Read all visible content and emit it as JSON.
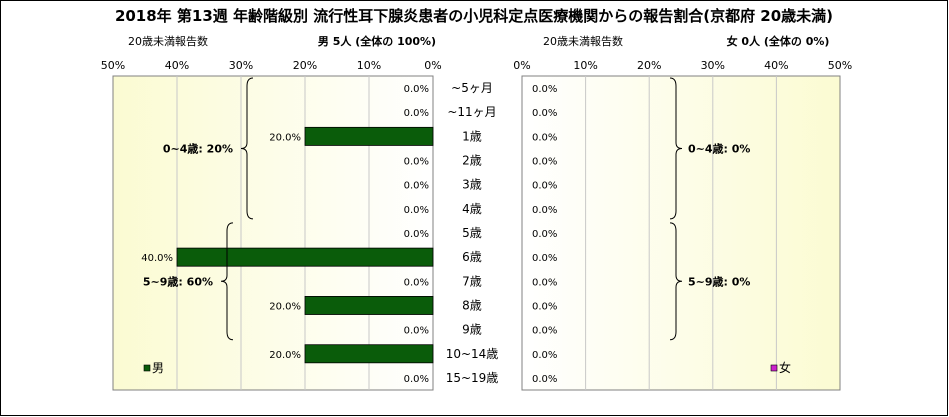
{
  "title": "2018年 第13週 年齢階級別 流行性耳下腺炎患者の小児科定点医療機関からの報告割合(京都府 20歳未満)",
  "chart_data": [
    {
      "type": "bar",
      "orientation": "horizontal",
      "direction": "right-to-left",
      "side": "left",
      "caption_left": "20歳未満報告数",
      "caption_main": "男  5人  (全体の  100%)",
      "xlim": [
        0,
        50
      ],
      "ticks": [
        "50%",
        "40%",
        "30%",
        "20%",
        "10%",
        "0%"
      ],
      "categories": [
        "~5ヶ月",
        "~11ヶ月",
        "1歳",
        "2歳",
        "3歳",
        "4歳",
        "5歳",
        "6歳",
        "7歳",
        "8歳",
        "9歳",
        "10~14歳",
        "15~19歳"
      ],
      "series": [
        {
          "name": "男",
          "color": "#0a5c0a",
          "values": [
            0,
            0,
            20,
            0,
            0,
            0,
            0,
            40,
            0,
            20,
            0,
            20,
            0
          ],
          "labels": [
            "0.0%",
            "0.0%",
            "20.0%",
            "0.0%",
            "0.0%",
            "0.0%",
            "0.0%",
            "40.0%",
            "0.0%",
            "20.0%",
            "0.0%",
            "20.0%",
            "0.0%"
          ]
        }
      ],
      "groups": [
        {
          "label": "0~4歳: 20%",
          "from": 0,
          "to": 5
        },
        {
          "label": "5~9歳: 60%",
          "from": 6,
          "to": 10
        }
      ],
      "legend": {
        "label": "男",
        "color": "#0a5c0a",
        "placement": "bottom-left"
      },
      "grid": true
    },
    {
      "type": "bar",
      "orientation": "horizontal",
      "direction": "left-to-right",
      "side": "right",
      "caption_left": "20歳未満報告数",
      "caption_main": "女  0人  (全体の  0%)",
      "xlim": [
        0,
        50
      ],
      "ticks": [
        "0%",
        "10%",
        "20%",
        "30%",
        "40%",
        "50%"
      ],
      "categories": [
        "~5ヶ月",
        "~11ヶ月",
        "1歳",
        "2歳",
        "3歳",
        "4歳",
        "5歳",
        "6歳",
        "7歳",
        "8歳",
        "9歳",
        "10~14歳",
        "15~19歳"
      ],
      "series": [
        {
          "name": "女",
          "color": "#cc22cc",
          "values": [
            0,
            0,
            0,
            0,
            0,
            0,
            0,
            0,
            0,
            0,
            0,
            0,
            0
          ],
          "labels": [
            "0.0%",
            "0.0%",
            "0.0%",
            "0.0%",
            "0.0%",
            "0.0%",
            "0.0%",
            "0.0%",
            "0.0%",
            "0.0%",
            "0.0%",
            "0.0%",
            "0.0%"
          ]
        }
      ],
      "groups": [
        {
          "label": "0~4歳: 0%",
          "from": 0,
          "to": 5
        },
        {
          "label": "5~9歳: 0%",
          "from": 6,
          "to": 10
        }
      ],
      "legend": {
        "label": "女",
        "color": "#cc22cc",
        "placement": "bottom-right"
      },
      "grid": true
    }
  ]
}
